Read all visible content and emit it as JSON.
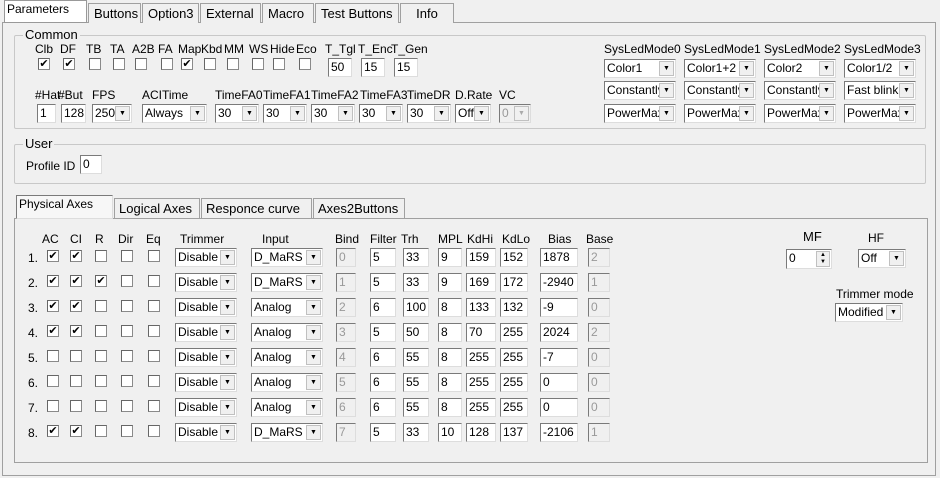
{
  "tabs": [
    "Parameters",
    "Buttons",
    "Option3",
    "External",
    "Macro",
    "Test Buttons",
    "Info"
  ],
  "common": {
    "title": "Common",
    "flags": [
      {
        "label": "Clb",
        "checked": true
      },
      {
        "label": "DF",
        "checked": true
      },
      {
        "label": "TB",
        "checked": false
      },
      {
        "label": "TA",
        "checked": false
      },
      {
        "label": "A2B",
        "checked": false
      },
      {
        "label": "FA",
        "checked": false
      },
      {
        "label": "Map",
        "checked": true
      },
      {
        "label": "Kbd",
        "checked": false
      },
      {
        "label": "MM",
        "checked": false
      },
      {
        "label": "WS",
        "checked": false
      },
      {
        "label": "Hide",
        "checked": false
      },
      {
        "label": "Eco",
        "checked": false
      }
    ],
    "timers": [
      {
        "label": "T_Tgl",
        "value": "50"
      },
      {
        "label": "T_Enc",
        "value": "15"
      },
      {
        "label": "T_Gen",
        "value": "15"
      }
    ],
    "row2": [
      {
        "label": "#Hat",
        "value": "1",
        "kind": "input"
      },
      {
        "label": "#But",
        "value": "128",
        "kind": "input"
      },
      {
        "label": "FPS",
        "value": "250",
        "kind": "select"
      },
      {
        "label": "ACITime",
        "value": "Always",
        "kind": "select"
      },
      {
        "label": "TimeFA0",
        "value": "30",
        "kind": "select"
      },
      {
        "label": "TimeFA1",
        "value": "30",
        "kind": "select"
      },
      {
        "label": "TimeFA2",
        "value": "30",
        "kind": "select"
      },
      {
        "label": "TimeFA3",
        "value": "30",
        "kind": "select"
      },
      {
        "label": "TimeDR",
        "value": "30",
        "kind": "select"
      },
      {
        "label": "D.Rate",
        "value": "Off",
        "kind": "select"
      },
      {
        "label": "VC",
        "value": "0",
        "kind": "select",
        "disabled": true
      }
    ],
    "sysled": [
      {
        "label": "SysLedMode0",
        "values": [
          "Color1",
          "Constantly",
          "PowerMax"
        ]
      },
      {
        "label": "SysLedMode1",
        "values": [
          "Color1+2",
          "Constantly",
          "PowerMax"
        ]
      },
      {
        "label": "SysLedMode2",
        "values": [
          "Color2",
          "Constantly",
          "PowerMax"
        ]
      },
      {
        "label": "SysLedMode3",
        "values": [
          "Color1/2",
          "Fast blink",
          "PowerMax"
        ]
      }
    ]
  },
  "user": {
    "title": "User",
    "profile_label": "Profile ID",
    "profile_value": "0"
  },
  "inner_tabs": [
    "Physical Axes",
    "Logical Axes",
    "Responce curve",
    "Axes2Buttons"
  ],
  "axes": {
    "headers": [
      "AC",
      "CI",
      "R",
      "Dir",
      "Eq",
      "Trimmer",
      "Input",
      "Bind",
      "Filter",
      "Trh",
      "MPL",
      "KdHi",
      "KdLo",
      "Bias",
      "Base"
    ],
    "rows": [
      {
        "n": "1.",
        "ac": true,
        "ci": true,
        "r": false,
        "dir": false,
        "eq": false,
        "trimmer": "Disable",
        "input": "D_MaRS",
        "bind": "0",
        "filter": "5",
        "trh": "33",
        "mpl": "9",
        "kdhi": "159",
        "kdlo": "152",
        "bias": "1878",
        "base": "2"
      },
      {
        "n": "2.",
        "ac": true,
        "ci": true,
        "r": true,
        "dir": false,
        "eq": false,
        "trimmer": "Disable",
        "input": "D_MaRS",
        "bind": "1",
        "filter": "5",
        "trh": "33",
        "mpl": "9",
        "kdhi": "169",
        "kdlo": "172",
        "bias": "-2940",
        "base": "1"
      },
      {
        "n": "3.",
        "ac": true,
        "ci": true,
        "r": false,
        "dir": false,
        "eq": false,
        "trimmer": "Disable",
        "input": "Analog",
        "bind": "2",
        "filter": "6",
        "trh": "100",
        "mpl": "8",
        "kdhi": "133",
        "kdlo": "132",
        "bias": "-9",
        "base": "0"
      },
      {
        "n": "4.",
        "ac": true,
        "ci": true,
        "r": false,
        "dir": false,
        "eq": false,
        "trimmer": "Disable",
        "input": "Analog",
        "bind": "3",
        "filter": "5",
        "trh": "50",
        "mpl": "8",
        "kdhi": "70",
        "kdlo": "255",
        "bias": "2024",
        "base": "2"
      },
      {
        "n": "5.",
        "ac": false,
        "ci": false,
        "r": false,
        "dir": false,
        "eq": false,
        "trimmer": "Disable",
        "input": "Analog",
        "bind": "4",
        "filter": "6",
        "trh": "55",
        "mpl": "8",
        "kdhi": "255",
        "kdlo": "255",
        "bias": "-7",
        "base": "0"
      },
      {
        "n": "6.",
        "ac": false,
        "ci": false,
        "r": false,
        "dir": false,
        "eq": false,
        "trimmer": "Disable",
        "input": "Analog",
        "bind": "5",
        "filter": "6",
        "trh": "55",
        "mpl": "8",
        "kdhi": "255",
        "kdlo": "255",
        "bias": "0",
        "base": "0"
      },
      {
        "n": "7.",
        "ac": false,
        "ci": false,
        "r": false,
        "dir": false,
        "eq": false,
        "trimmer": "Disable",
        "input": "Analog",
        "bind": "6",
        "filter": "6",
        "trh": "55",
        "mpl": "8",
        "kdhi": "255",
        "kdlo": "255",
        "bias": "0",
        "base": "0"
      },
      {
        "n": "8.",
        "ac": true,
        "ci": true,
        "r": false,
        "dir": false,
        "eq": false,
        "trimmer": "Disable",
        "input": "D_MaRS",
        "bind": "7",
        "filter": "5",
        "trh": "33",
        "mpl": "10",
        "kdhi": "128",
        "kdlo": "137",
        "bias": "-2106",
        "base": "1"
      }
    ]
  },
  "right": {
    "mf_label": "MF",
    "mf_value": "0",
    "hf_label": "HF",
    "hf_value": "Off",
    "trimmer_mode_label": "Trimmer mode",
    "trimmer_mode_value": "Modified"
  }
}
